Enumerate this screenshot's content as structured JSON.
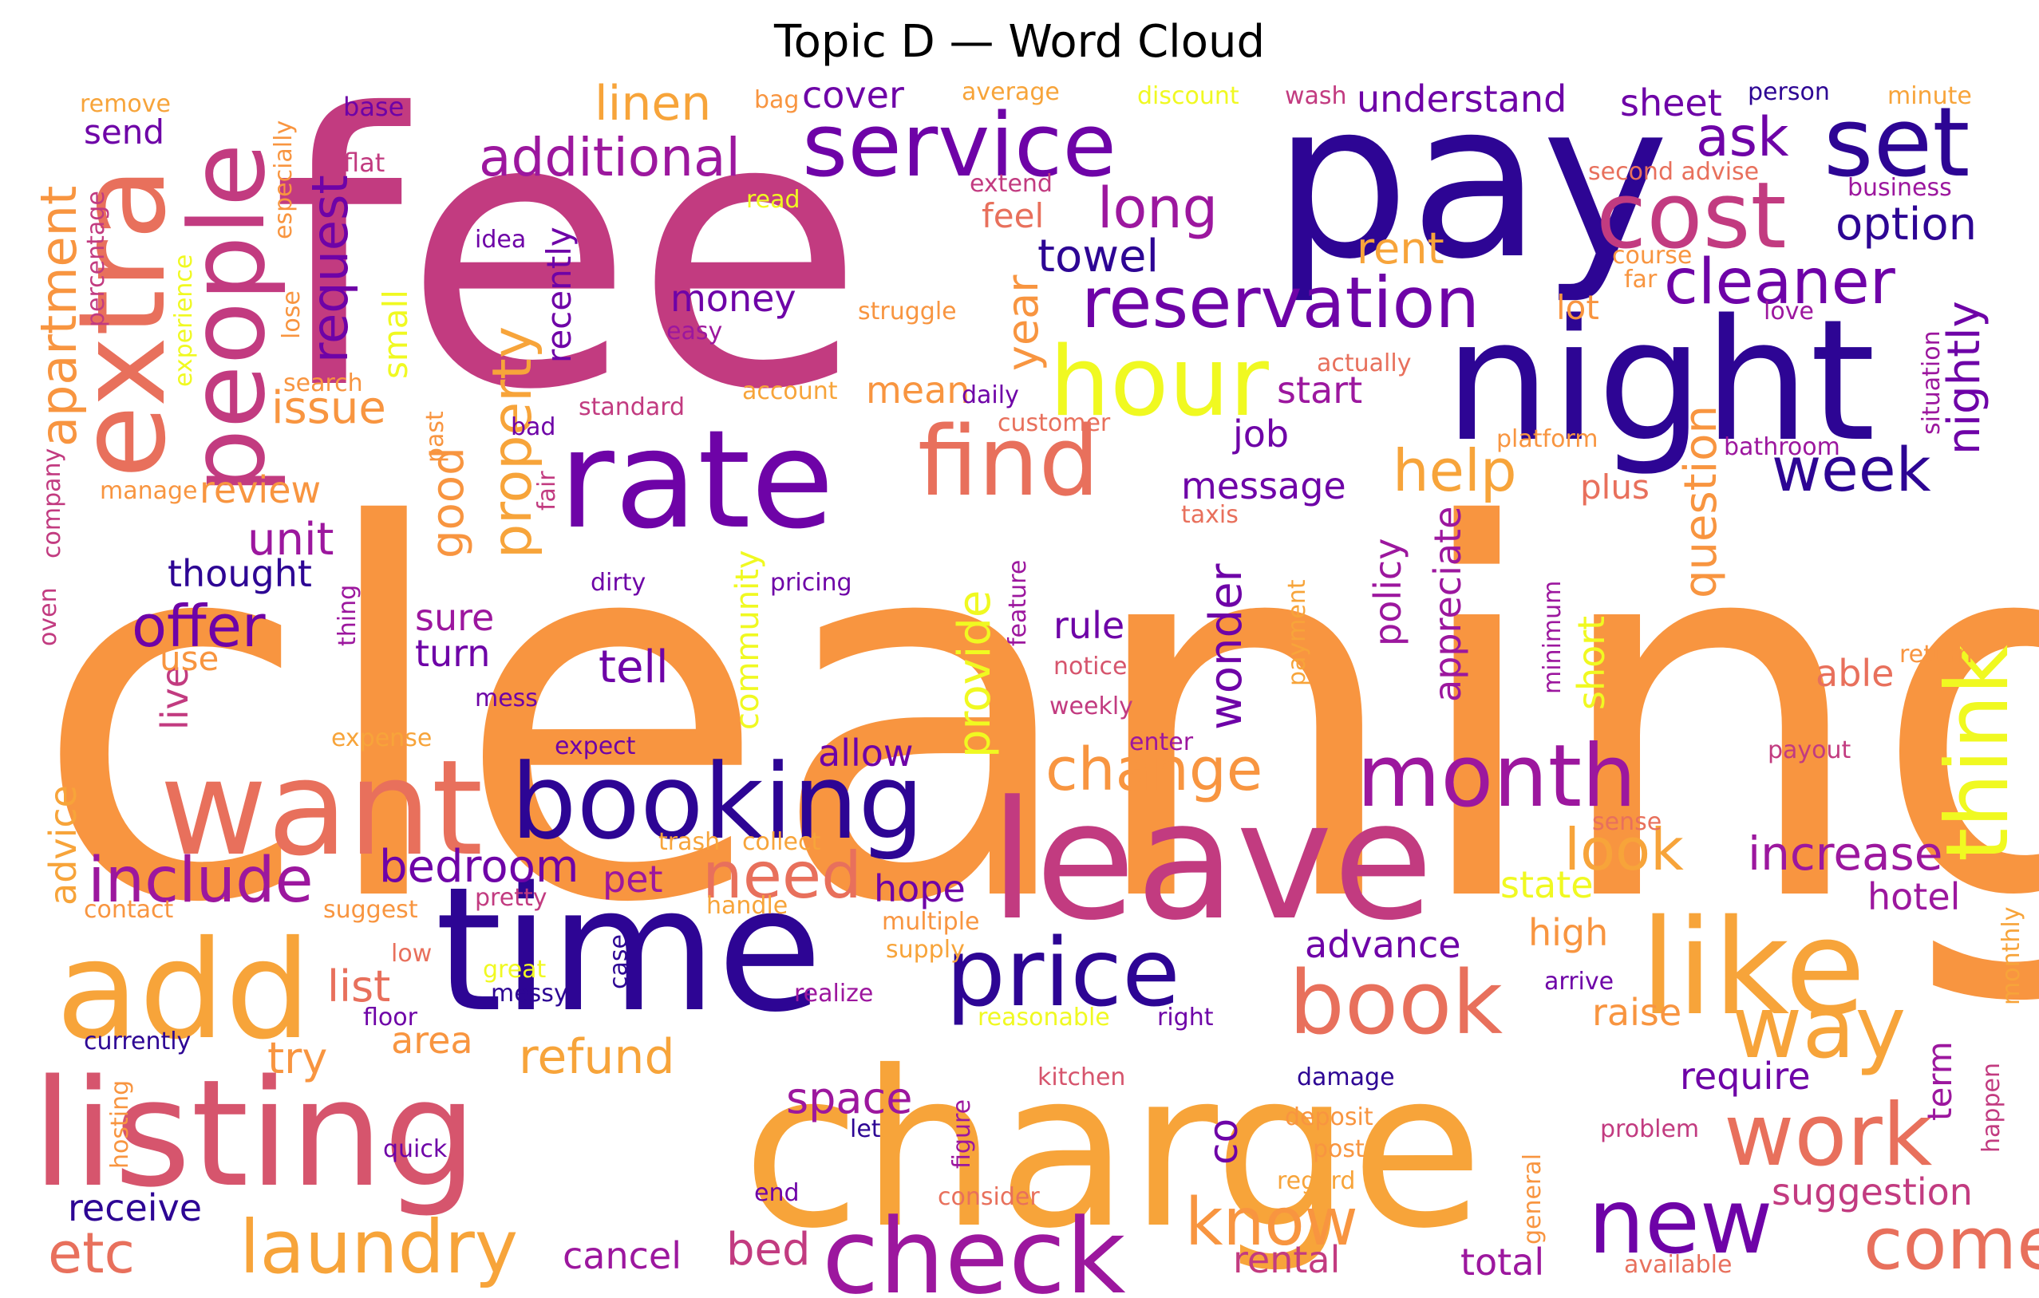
{
  "title": "Topic D — Word Cloud",
  "palette": {
    "indigo": "#2d0594",
    "purple": "#6e03a7",
    "violet": "#9c179e",
    "magenta": "#c23b80",
    "rose": "#d6556d",
    "coral": "#e8705c",
    "orange": "#f89540",
    "amber": "#f7a43a",
    "yellow": "#f0f921"
  },
  "words": [
    {
      "text": "cleaning",
      "color": "orange"
    },
    {
      "text": "fee",
      "color": "magenta"
    },
    {
      "text": "charge",
      "color": "amber"
    },
    {
      "text": "pay",
      "color": "indigo"
    },
    {
      "text": "night",
      "color": "indigo"
    },
    {
      "text": "time",
      "color": "indigo"
    },
    {
      "text": "leave",
      "color": "magenta"
    },
    {
      "text": "listing",
      "color": "rose"
    },
    {
      "text": "rate",
      "color": "purple"
    },
    {
      "text": "want",
      "color": "coral"
    },
    {
      "text": "add",
      "color": "amber"
    },
    {
      "text": "like",
      "color": "amber"
    },
    {
      "text": "booking",
      "color": "indigo"
    },
    {
      "text": "extra",
      "color": "coral"
    },
    {
      "text": "people",
      "color": "magenta"
    },
    {
      "text": "check",
      "color": "violet"
    },
    {
      "text": "price",
      "color": "indigo"
    },
    {
      "text": "hour",
      "color": "yellow"
    },
    {
      "text": "service",
      "color": "purple"
    },
    {
      "text": "cost",
      "color": "magenta"
    },
    {
      "text": "set",
      "color": "indigo"
    },
    {
      "text": "find",
      "color": "coral"
    },
    {
      "text": "reservation",
      "color": "purple"
    },
    {
      "text": "month",
      "color": "violet"
    },
    {
      "text": "book",
      "color": "coral"
    },
    {
      "text": "work",
      "color": "coral"
    },
    {
      "text": "new",
      "color": "purple"
    },
    {
      "text": "way",
      "color": "amber"
    },
    {
      "text": "think",
      "color": "yellow"
    },
    {
      "text": "laundry",
      "color": "amber"
    },
    {
      "text": "include",
      "color": "violet"
    },
    {
      "text": "cleaner",
      "color": "purple"
    },
    {
      "text": "come",
      "color": "coral"
    },
    {
      "text": "need",
      "color": "coral"
    },
    {
      "text": "know",
      "color": "orange"
    },
    {
      "text": "change",
      "color": "orange"
    },
    {
      "text": "additional",
      "color": "violet"
    },
    {
      "text": "ask",
      "color": "purple"
    },
    {
      "text": "long",
      "color": "violet"
    },
    {
      "text": "property",
      "color": "amber"
    },
    {
      "text": "week",
      "color": "indigo"
    },
    {
      "text": "apartment",
      "color": "orange"
    },
    {
      "text": "request",
      "color": "purple"
    },
    {
      "text": "offer",
      "color": "purple"
    },
    {
      "text": "help",
      "color": "amber"
    },
    {
      "text": "linen",
      "color": "amber"
    },
    {
      "text": "refund",
      "color": "amber"
    },
    {
      "text": "increase",
      "color": "violet"
    },
    {
      "text": "look",
      "color": "amber"
    },
    {
      "text": "option",
      "color": "indigo"
    },
    {
      "text": "etc",
      "color": "coral"
    },
    {
      "text": "question",
      "color": "orange"
    },
    {
      "text": "nightly",
      "color": "purple"
    },
    {
      "text": "bedroom",
      "color": "purple"
    },
    {
      "text": "towel",
      "color": "indigo"
    },
    {
      "text": "rent",
      "color": "amber"
    },
    {
      "text": "issue",
      "color": "orange"
    },
    {
      "text": "wonder",
      "color": "purple"
    },
    {
      "text": "suggestion",
      "color": "magenta"
    },
    {
      "text": "list",
      "color": "coral"
    },
    {
      "text": "advance",
      "color": "purple"
    },
    {
      "text": "provide",
      "color": "yellow"
    },
    {
      "text": "appreciate",
      "color": "violet"
    },
    {
      "text": "year",
      "color": "orange"
    },
    {
      "text": "good",
      "color": "orange"
    },
    {
      "text": "unit",
      "color": "violet"
    },
    {
      "text": "tell",
      "color": "purple"
    },
    {
      "text": "space",
      "color": "violet"
    },
    {
      "text": "bed",
      "color": "magenta"
    },
    {
      "text": "cancel",
      "color": "violet"
    },
    {
      "text": "rental",
      "color": "magenta"
    },
    {
      "text": "total",
      "color": "violet"
    },
    {
      "text": "try",
      "color": "orange"
    },
    {
      "text": "hope",
      "color": "purple"
    },
    {
      "text": "hotel",
      "color": "violet"
    },
    {
      "text": "require",
      "color": "purple"
    },
    {
      "text": "receive",
      "color": "indigo"
    },
    {
      "text": "advice",
      "color": "amber"
    },
    {
      "text": "pet",
      "color": "violet"
    },
    {
      "text": "short",
      "color": "yellow"
    },
    {
      "text": "high",
      "color": "orange"
    },
    {
      "text": "raise",
      "color": "orange"
    },
    {
      "text": "area",
      "color": "orange"
    },
    {
      "text": "state",
      "color": "yellow"
    },
    {
      "text": "able",
      "color": "coral"
    },
    {
      "text": "co",
      "color": "purple"
    },
    {
      "text": "rule",
      "color": "purple"
    },
    {
      "text": "thought",
      "color": "indigo"
    },
    {
      "text": "mean",
      "color": "orange"
    },
    {
      "text": "policy",
      "color": "violet"
    },
    {
      "text": "message",
      "color": "purple"
    },
    {
      "text": "understand",
      "color": "purple"
    },
    {
      "text": "sheet",
      "color": "purple"
    },
    {
      "text": "start",
      "color": "violet"
    },
    {
      "text": "job",
      "color": "purple"
    },
    {
      "text": "money",
      "color": "purple"
    },
    {
      "text": "review",
      "color": "orange"
    },
    {
      "text": "community",
      "color": "yellow"
    },
    {
      "text": "allow",
      "color": "purple"
    },
    {
      "text": "turn",
      "color": "purple"
    },
    {
      "text": "sure",
      "color": "violet"
    },
    {
      "text": "send",
      "color": "purple"
    },
    {
      "text": "lot",
      "color": "orange"
    },
    {
      "text": "cover",
      "color": "purple"
    },
    {
      "text": "live",
      "color": "magenta"
    },
    {
      "text": "recently",
      "color": "purple"
    },
    {
      "text": "plus",
      "color": "coral"
    },
    {
      "text": "small",
      "color": "yellow"
    },
    {
      "text": "feel",
      "color": "coral"
    },
    {
      "text": "use",
      "color": "orange"
    },
    {
      "text": "term",
      "color": "violet"
    },
    {
      "text": "base",
      "color": "purple"
    },
    {
      "text": "flat",
      "color": "magenta"
    },
    {
      "text": "remove",
      "color": "amber"
    },
    {
      "text": "bag",
      "color": "orange"
    },
    {
      "text": "average",
      "color": "amber"
    },
    {
      "text": "discount",
      "color": "yellow"
    },
    {
      "text": "wash",
      "color": "magenta"
    },
    {
      "text": "person",
      "color": "indigo"
    },
    {
      "text": "minute",
      "color": "amber"
    },
    {
      "text": "especially",
      "color": "orange"
    },
    {
      "text": "percentage",
      "color": "magenta"
    },
    {
      "text": "read",
      "color": "yellow"
    },
    {
      "text": "extend",
      "color": "magenta"
    },
    {
      "text": "second advise",
      "color": "coral"
    },
    {
      "text": "business",
      "color": "violet"
    },
    {
      "text": "idea",
      "color": "purple"
    },
    {
      "text": "course",
      "color": "orange"
    },
    {
      "text": "far",
      "color": "orange"
    },
    {
      "text": "love",
      "color": "violet"
    },
    {
      "text": "struggle",
      "color": "orange"
    },
    {
      "text": "easy",
      "color": "violet"
    },
    {
      "text": "lose",
      "color": "orange"
    },
    {
      "text": "experience",
      "color": "yellow"
    },
    {
      "text": "search",
      "color": "orange"
    },
    {
      "text": "actually",
      "color": "coral"
    },
    {
      "text": "situation",
      "color": "violet"
    },
    {
      "text": "account",
      "color": "amber"
    },
    {
      "text": "daily",
      "color": "purple"
    },
    {
      "text": "standard",
      "color": "magenta"
    },
    {
      "text": "past",
      "color": "orange"
    },
    {
      "text": "customer",
      "color": "coral"
    },
    {
      "text": "bad",
      "color": "purple"
    },
    {
      "text": "platform",
      "color": "orange"
    },
    {
      "text": "bathroom",
      "color": "violet"
    },
    {
      "text": "manage",
      "color": "orange"
    },
    {
      "text": "company",
      "color": "magenta"
    },
    {
      "text": "fair",
      "color": "magenta"
    },
    {
      "text": "taxis",
      "color": "coral"
    },
    {
      "text": "dirty",
      "color": "purple"
    },
    {
      "text": "pricing",
      "color": "purple"
    },
    {
      "text": "oven",
      "color": "magenta"
    },
    {
      "text": "thing",
      "color": "violet"
    },
    {
      "text": "feature",
      "color": "violet"
    },
    {
      "text": "payment",
      "color": "amber"
    },
    {
      "text": "minimum",
      "color": "violet"
    },
    {
      "text": "notice",
      "color": "rose"
    },
    {
      "text": "return",
      "color": "orange"
    },
    {
      "text": "mess",
      "color": "purple"
    },
    {
      "text": "weekly",
      "color": "magenta"
    },
    {
      "text": "expense",
      "color": "amber"
    },
    {
      "text": "expect",
      "color": "purple"
    },
    {
      "text": "enter",
      "color": "violet"
    },
    {
      "text": "payout",
      "color": "magenta"
    },
    {
      "text": "trash",
      "color": "amber"
    },
    {
      "text": "collect",
      "color": "amber"
    },
    {
      "text": "sense",
      "color": "coral"
    },
    {
      "text": "contact",
      "color": "orange"
    },
    {
      "text": "suggest",
      "color": "orange"
    },
    {
      "text": "pretty",
      "color": "magenta"
    },
    {
      "text": "handle",
      "color": "amber"
    },
    {
      "text": "multiple",
      "color": "orange"
    },
    {
      "text": "supply",
      "color": "amber"
    },
    {
      "text": "low",
      "color": "coral"
    },
    {
      "text": "case",
      "color": "indigo"
    },
    {
      "text": "great",
      "color": "yellow"
    },
    {
      "text": "messy",
      "color": "indigo"
    },
    {
      "text": "realize",
      "color": "violet"
    },
    {
      "text": "arrive",
      "color": "purple"
    },
    {
      "text": "monthly",
      "color": "amber"
    },
    {
      "text": "floor",
      "color": "purple"
    },
    {
      "text": "reasonable",
      "color": "yellow"
    },
    {
      "text": "right",
      "color": "purple"
    },
    {
      "text": "currently",
      "color": "indigo"
    },
    {
      "text": "hosting",
      "color": "orange"
    },
    {
      "text": "kitchen",
      "color": "rose"
    },
    {
      "text": "damage",
      "color": "indigo"
    },
    {
      "text": "happen",
      "color": "magenta"
    },
    {
      "text": "deposit",
      "color": "orange"
    },
    {
      "text": "figure",
      "color": "violet"
    },
    {
      "text": "problem",
      "color": "magenta"
    },
    {
      "text": "quick",
      "color": "purple"
    },
    {
      "text": "let",
      "color": "indigo"
    },
    {
      "text": "post",
      "color": "orange"
    },
    {
      "text": "general",
      "color": "orange"
    },
    {
      "text": "regard",
      "color": "amber"
    },
    {
      "text": "consider",
      "color": "coral"
    },
    {
      "text": "end",
      "color": "purple"
    },
    {
      "text": "available",
      "color": "coral"
    }
  ]
}
